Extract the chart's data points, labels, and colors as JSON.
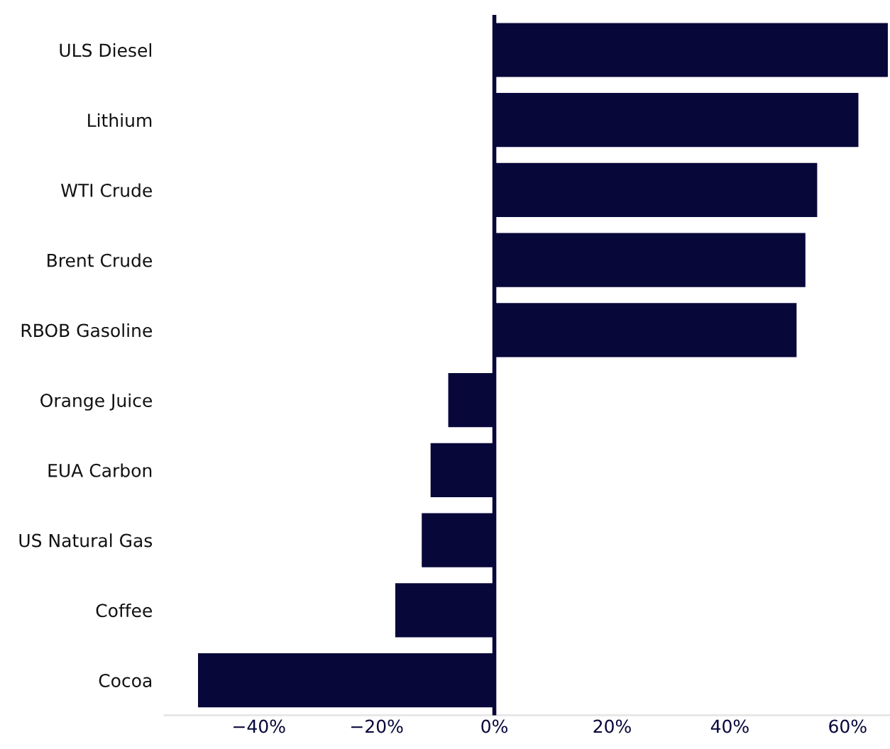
{
  "chart_data": {
    "type": "bar",
    "orientation": "horizontal",
    "categories": [
      "ULS Diesel",
      "Lithium",
      "WTI Crude",
      "Brent Crude",
      "RBOB Gasoline",
      "Orange Juice",
      "EUA Carbon",
      "US Natural Gas",
      "Coffee",
      "Cocoa"
    ],
    "values": [
      67,
      62,
      55,
      53,
      51.5,
      -8,
      -11,
      -12.5,
      -17,
      -50.5
    ],
    "color": "#08073a",
    "xlim": [
      -56,
      67.2
    ],
    "xticks": [
      {
        "value": -40,
        "label": "−40%"
      },
      {
        "value": -20,
        "label": "−20%"
      },
      {
        "value": 0,
        "label": "0%"
      },
      {
        "value": 20,
        "label": "20%"
      },
      {
        "value": 40,
        "label": "40%"
      },
      {
        "value": 60,
        "label": "60%"
      }
    ],
    "grid": false,
    "legend": false
  }
}
